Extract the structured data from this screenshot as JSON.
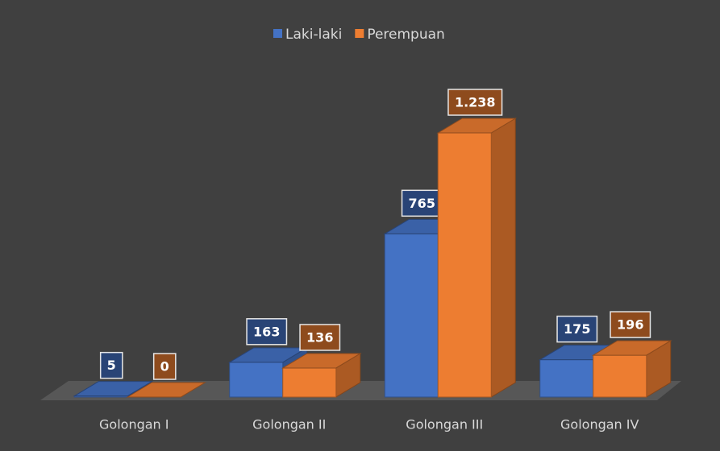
{
  "chart_data": {
    "type": "bar3d",
    "categories": [
      "Golongan I",
      "Golongan II",
      "Golongan III",
      "Golongan IV"
    ],
    "series": [
      {
        "name": "Laki-laki",
        "color": "#4472c4",
        "values": [
          5,
          163,
          765,
          175
        ]
      },
      {
        "name": "Perempuan",
        "color": "#ed7d31",
        "values": [
          0,
          136,
          1238,
          196
        ],
        "value_labels": [
          "0",
          "136",
          "1.238",
          "196"
        ]
      }
    ],
    "legend": "top"
  }
}
